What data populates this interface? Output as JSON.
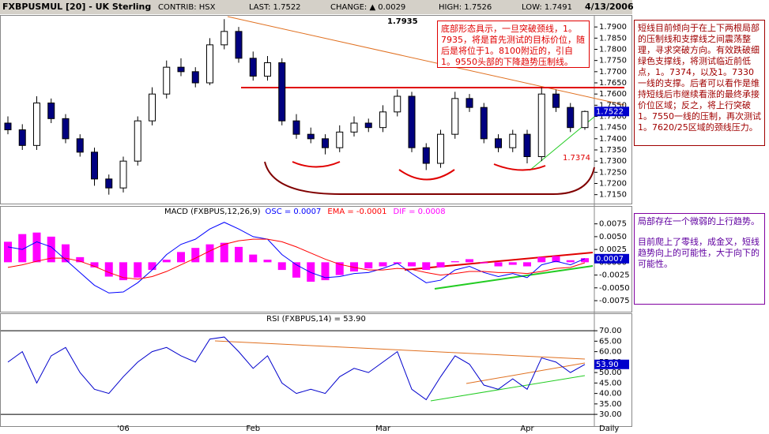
{
  "header": {
    "title": "FXBPUSMUL [20] - UK Sterling",
    "contrib": "CONTRIB: HSX",
    "last": "LAST: 1.7522",
    "change": "CHANGE: ▲ 0.0029",
    "high": "HIGH: 1.7526",
    "low": "LOW: 1.7491",
    "date": "4/13/2006"
  },
  "notes": {
    "top": "底部形态具示，一旦突破颈线，1。7935，将是首先测试的目标价位，随后是将位于1。8100附近的，引自1。9550头部的下降趋势压制线。",
    "right": "短线目前倾向于在上下两根局部的压制线和支撑线之间震荡整理，寻求突破方向。有效跌破细绿色支撑线，将测试临近前低点，1。7374，以及1。7330一线的支撑。后者可以看作是维持短线后市继续看涨的最终承接价位区域；反之，将上行突破1。7550一线的压制，再次测试1。7620/25区域的颈线压力。",
    "right2": [
      "局部存在一个微弱的上行趋势。",
      "目前爬上了零线，成金叉，短线趋势向上的可能性，大于向下的可能性。"
    ]
  },
  "chart_data": [
    {
      "type": "candlestick",
      "color_up": "#ffffff",
      "color_down": "#000080",
      "open": [
        1.747,
        1.744,
        1.737,
        1.756,
        1.749,
        1.74,
        1.734,
        1.722,
        1.718,
        1.73,
        1.748,
        1.76,
        1.772,
        1.77,
        1.765,
        1.782,
        1.788,
        1.776,
        1.768,
        1.774,
        1.748,
        1.742,
        1.74,
        1.736,
        1.743,
        1.747,
        1.745,
        1.752,
        1.759,
        1.736,
        1.729,
        1.742,
        1.758,
        1.754,
        1.74,
        1.736,
        1.742,
        1.732,
        1.76,
        1.754,
        1.745
      ],
      "high": [
        1.75,
        1.7465,
        1.759,
        1.758,
        1.751,
        1.742,
        1.736,
        1.724,
        1.732,
        1.75,
        1.763,
        1.775,
        1.776,
        1.772,
        1.785,
        1.7935,
        1.79,
        1.779,
        1.777,
        1.776,
        1.751,
        1.745,
        1.742,
        1.746,
        1.75,
        1.749,
        1.755,
        1.762,
        1.761,
        1.738,
        1.744,
        1.761,
        1.76,
        1.756,
        1.742,
        1.744,
        1.744,
        1.763,
        1.762,
        1.756,
        1.7526
      ],
      "low": [
        1.742,
        1.735,
        1.735,
        1.747,
        1.738,
        1.732,
        1.719,
        1.715,
        1.716,
        1.728,
        1.746,
        1.758,
        1.768,
        1.763,
        1.764,
        1.78,
        1.774,
        1.766,
        1.766,
        1.746,
        1.74,
        1.738,
        1.733,
        1.734,
        1.741,
        1.743,
        1.743,
        1.75,
        1.734,
        1.726,
        1.727,
        1.74,
        1.752,
        1.738,
        1.734,
        1.734,
        1.729,
        1.73,
        1.752,
        1.743,
        1.744
      ],
      "close": [
        1.744,
        1.737,
        1.756,
        1.749,
        1.74,
        1.734,
        1.722,
        1.718,
        1.73,
        1.748,
        1.76,
        1.772,
        1.77,
        1.765,
        1.782,
        1.788,
        1.776,
        1.768,
        1.774,
        1.748,
        1.742,
        1.74,
        1.736,
        1.743,
        1.747,
        1.745,
        1.752,
        1.759,
        1.736,
        1.729,
        1.742,
        1.758,
        1.754,
        1.74,
        1.736,
        1.742,
        1.732,
        1.76,
        1.754,
        1.745,
        1.7522
      ],
      "ylim": [
        1.711,
        1.795
      ],
      "yticks": [
        {
          "value": 1.715,
          "label": "1.7150"
        },
        {
          "value": 1.72,
          "label": "1.7200"
        },
        {
          "value": 1.725,
          "label": "1.7250"
        },
        {
          "value": 1.73,
          "label": "1.7300"
        },
        {
          "value": 1.735,
          "label": "1.7350"
        },
        {
          "value": 1.74,
          "label": "1.7400"
        },
        {
          "value": 1.745,
          "label": "1.7450"
        },
        {
          "value": 1.75,
          "label": "1.7500"
        },
        {
          "value": 1.755,
          "label": "1.7550"
        },
        {
          "value": 1.76,
          "label": "1.7600"
        },
        {
          "value": 1.765,
          "label": "1.7650"
        },
        {
          "value": 1.77,
          "label": "1.7700"
        },
        {
          "value": 1.775,
          "label": "1.7750"
        },
        {
          "value": 1.78,
          "label": "1.7800"
        },
        {
          "value": 1.785,
          "label": "1.7850"
        },
        {
          "value": 1.79,
          "label": "1.7900"
        }
      ],
      "annotations": [
        "1.7935",
        "1.7374"
      ]
    },
    {
      "type": "macd",
      "title": "MACD (FXBPUS,12,26,9)",
      "series": [
        {
          "name": "OSC = 0.0007",
          "color": "#0000ff",
          "style": "line",
          "values": [
            0.003,
            0.0025,
            0.004,
            0.003,
            0.0005,
            -0.002,
            -0.0045,
            -0.006,
            -0.0058,
            -0.004,
            -0.0015,
            0.0015,
            0.0035,
            0.0045,
            0.0065,
            0.0078,
            0.0065,
            0.005,
            0.0045,
            0.0015,
            -0.0005,
            -0.002,
            -0.003,
            -0.0028,
            -0.0022,
            -0.002,
            -0.0012,
            -0.0002,
            -0.0022,
            -0.004,
            -0.0035,
            -0.0015,
            -0.0008,
            -0.002,
            -0.0028,
            -0.0022,
            -0.003,
            -0.0005,
            0.0002,
            -0.0005,
            0.0007
          ]
        },
        {
          "name": "EMA = -0.0001",
          "color": "#ff0000",
          "style": "line",
          "values": [
            -0.001,
            -0.0005,
            0.0002,
            0.0008,
            0.0008,
            0.0002,
            -0.0008,
            -0.002,
            -0.003,
            -0.0033,
            -0.0028,
            -0.0018,
            -0.0005,
            0.0008,
            0.0022,
            0.0035,
            0.0042,
            0.0045,
            0.0045,
            0.004,
            0.003,
            0.0018,
            0.0006,
            -0.0004,
            -0.001,
            -0.0015,
            -0.0015,
            -0.0012,
            -0.0014,
            -0.002,
            -0.0025,
            -0.0022,
            -0.0018,
            -0.0018,
            -0.002,
            -0.002,
            -0.0022,
            -0.0018,
            -0.0012,
            -0.001,
            -0.0001
          ]
        },
        {
          "name": "DIF = 0.0008",
          "color": "#ff00ff",
          "style": "bar",
          "values": [
            0.004,
            0.0055,
            0.0058,
            0.005,
            0.0035,
            0.001,
            -0.001,
            -0.0028,
            -0.0035,
            -0.003,
            -0.0015,
            0.0005,
            0.002,
            0.0028,
            0.0035,
            0.0038,
            0.003,
            0.0015,
            0.0005,
            -0.0015,
            -0.003,
            -0.0038,
            -0.0035,
            -0.0025,
            -0.0018,
            -0.0012,
            -0.0008,
            -0.0003,
            -0.0008,
            -0.0015,
            -0.001,
            0.0002,
            0.0006,
            -0.0002,
            -0.0008,
            -0.0005,
            -0.0008,
            0.001,
            0.0012,
            0.0004,
            0.0008
          ]
        }
      ],
      "ylim": [
        -0.0095,
        0.0093
      ],
      "yticks": [
        {
          "value": 0.0075,
          "label": "0.0075"
        },
        {
          "value": 0.005,
          "label": "0.0050"
        },
        {
          "value": 0.0025,
          "label": "0.0025"
        },
        {
          "value": 0,
          "label": "0.0000"
        },
        {
          "value": -0.0025,
          "label": "-0.0025"
        },
        {
          "value": -0.005,
          "label": "-0.0050"
        },
        {
          "value": -0.0075,
          "label": "-0.0075"
        }
      ]
    },
    {
      "type": "line",
      "title": "RSI (FXBPUS,14) = 53.90",
      "color": "#0000cc",
      "categories": [
        null,
        null,
        null,
        null,
        null,
        null,
        null,
        null,
        "'06",
        null,
        null,
        null,
        null,
        null,
        null,
        null,
        null,
        "Feb",
        null,
        null,
        null,
        null,
        null,
        null,
        null,
        null,
        "Mar",
        null,
        null,
        null,
        null,
        null,
        null,
        null,
        null,
        null,
        "Apr",
        null,
        null,
        null,
        null
      ],
      "x_label": "Daily",
      "values": [
        55,
        60,
        45,
        58,
        62,
        50,
        42,
        40,
        48,
        55,
        60,
        62,
        58,
        55,
        66,
        67,
        60,
        52,
        58,
        45,
        40,
        42,
        40,
        48,
        52,
        50,
        55,
        60,
        42,
        37,
        48,
        58,
        54,
        44,
        42,
        47,
        42,
        57,
        55,
        50,
        53.9
      ],
      "last_value_label": "53.90",
      "ylim": [
        27.4,
        74.2
      ],
      "yticks": [
        {
          "value": 30,
          "label": "30.00"
        },
        {
          "value": 35,
          "label": "35.00"
        },
        {
          "value": 40,
          "label": "40.00"
        },
        {
          "value": 45,
          "label": "45.00"
        },
        {
          "value": 50,
          "label": "50.00"
        },
        {
          "value": 55,
          "label": "55.00"
        },
        {
          "value": 60,
          "label": "60.00"
        },
        {
          "value": 65,
          "label": "65.00"
        },
        {
          "value": 70,
          "label": "70.00"
        }
      ],
      "hlines": [
        70,
        30
      ]
    }
  ]
}
